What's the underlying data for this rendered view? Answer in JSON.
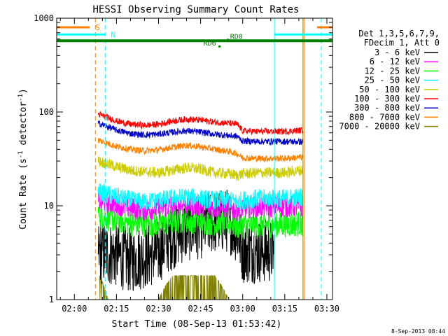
{
  "chart_data": {
    "type": "line",
    "title": "HESSI Observing Summary Count Rates",
    "xlabel": "Start Time (08-Sep-13 01:53:42)",
    "ylabel": "Count Rate (s⁻¹ detector⁻¹)",
    "ylabel_main": "Count Rate (s",
    "ylabel_sup1": "-1",
    "ylabel_mid": " detector",
    "ylabel_sup2": "-1",
    "ylabel_end": ")",
    "y_scale": "log",
    "xlim_minutes": [
      113.7,
      212
    ],
    "ylim": [
      1,
      1000
    ],
    "x_ticks": [
      {
        "t": 120,
        "label": "02:00"
      },
      {
        "t": 135,
        "label": "02:15"
      },
      {
        "t": 150,
        "label": "02:30"
      },
      {
        "t": 165,
        "label": "02:45"
      },
      {
        "t": 180,
        "label": "03:00"
      },
      {
        "t": 195,
        "label": "03:15"
      },
      {
        "t": 210,
        "label": "03:30"
      }
    ],
    "y_ticks": [
      {
        "v": 1,
        "label": "1"
      },
      {
        "v": 10,
        "label": "10"
      },
      {
        "v": 100,
        "label": "100"
      },
      {
        "v": 1000,
        "label": "1000"
      }
    ],
    "legend_header": [
      "Det 1,3,5,6,7,9,",
      "FDecim 1, Att 0"
    ],
    "legend_placement": "right",
    "data_window_minutes": [
      128.5,
      201.5
    ],
    "gap_window_minutes": [
      191.3,
      201.5
    ],
    "series": [
      {
        "name": "3 - 6 keV",
        "color": "#000000",
        "points": [
          [
            128.5,
            3.2
          ],
          [
            135,
            3.0
          ],
          [
            140,
            2.6
          ],
          [
            145,
            2.9
          ],
          [
            150,
            3.2
          ],
          [
            152,
            3.9
          ],
          [
            155,
            4.6
          ],
          [
            160,
            5.6
          ],
          [
            165,
            6.0
          ],
          [
            170,
            6.8
          ],
          [
            175,
            7.0
          ],
          [
            178,
            5.3
          ],
          [
            180,
            3.3
          ],
          [
            185,
            3.3
          ],
          [
            191.3,
            3.3
          ]
        ]
      },
      {
        "name": "6 - 12 keV",
        "color": "#ff00ff",
        "points": [
          [
            128.5,
            11.5
          ],
          [
            135,
            10.5
          ],
          [
            140,
            9.5
          ],
          [
            145,
            9.0
          ],
          [
            150,
            9.5
          ],
          [
            155,
            10.0
          ],
          [
            160,
            10.5
          ],
          [
            165,
            10.0
          ],
          [
            170,
            9.5
          ],
          [
            175,
            9.5
          ],
          [
            178,
            9.0
          ],
          [
            180,
            9.5
          ],
          [
            185,
            9.8
          ],
          [
            190,
            9.8
          ],
          [
            195,
            9.8
          ],
          [
            201.5,
            10.0
          ]
        ]
      },
      {
        "name": "12 - 25 keV",
        "color": "#00ff00",
        "points": [
          [
            128.5,
            8.0
          ],
          [
            135,
            7.0
          ],
          [
            140,
            6.5
          ],
          [
            145,
            6.3
          ],
          [
            150,
            6.5
          ],
          [
            155,
            6.8
          ],
          [
            160,
            7.0
          ],
          [
            165,
            6.8
          ],
          [
            170,
            6.5
          ],
          [
            175,
            6.5
          ],
          [
            178,
            6.0
          ],
          [
            180,
            6.2
          ],
          [
            185,
            6.3
          ],
          [
            190,
            6.3
          ],
          [
            195,
            6.3
          ],
          [
            201.5,
            6.5
          ]
        ]
      },
      {
        "name": "25 - 50 keV",
        "color": "#00ffff",
        "points": [
          [
            128.5,
            14.0
          ],
          [
            135,
            12.5
          ],
          [
            140,
            11.5
          ],
          [
            145,
            11.0
          ],
          [
            150,
            11.5
          ],
          [
            155,
            12.0
          ],
          [
            160,
            12.5
          ],
          [
            165,
            12.0
          ],
          [
            170,
            11.5
          ],
          [
            175,
            11.5
          ],
          [
            178,
            11.0
          ],
          [
            180,
            11.5
          ],
          [
            185,
            12.0
          ],
          [
            190,
            12.0
          ],
          [
            195,
            12.0
          ],
          [
            201.5,
            12.5
          ]
        ]
      },
      {
        "name": "50 - 100 keV",
        "color": "#cccc00",
        "points": [
          [
            128.5,
            30.0
          ],
          [
            135,
            26.0
          ],
          [
            140,
            24.0
          ],
          [
            145,
            23.0
          ],
          [
            150,
            22.5
          ],
          [
            155,
            24.0
          ],
          [
            160,
            25.5
          ],
          [
            165,
            24.5
          ],
          [
            170,
            22.5
          ],
          [
            175,
            22.0
          ],
          [
            178,
            21.0
          ],
          [
            180,
            22.0
          ],
          [
            185,
            22.5
          ],
          [
            190,
            22.5
          ],
          [
            195,
            22.5
          ],
          [
            201.5,
            24.0
          ]
        ]
      },
      {
        "name": "100 - 300 keV",
        "color": "#ff0000",
        "points": [
          [
            128.5,
            95.0
          ],
          [
            135,
            80.0
          ],
          [
            140,
            74.0
          ],
          [
            145,
            72.0
          ],
          [
            150,
            74.0
          ],
          [
            155,
            80.0
          ],
          [
            160,
            84.0
          ],
          [
            165,
            82.0
          ],
          [
            170,
            78.0
          ],
          [
            175,
            76.0
          ],
          [
            178,
            74.0
          ],
          [
            180,
            63.0
          ],
          [
            185,
            62.0
          ],
          [
            190,
            62.0
          ],
          [
            195,
            62.0
          ],
          [
            201.5,
            64.0
          ]
        ]
      },
      {
        "name": "300 - 800 keV",
        "color": "#0000cc",
        "points": [
          [
            128.5,
            76.0
          ],
          [
            135,
            64.0
          ],
          [
            140,
            59.0
          ],
          [
            145,
            57.0
          ],
          [
            150,
            58.0
          ],
          [
            155,
            61.0
          ],
          [
            160,
            63.0
          ],
          [
            165,
            61.0
          ],
          [
            170,
            58.0
          ],
          [
            175,
            56.0
          ],
          [
            178,
            55.0
          ],
          [
            180,
            49.0
          ],
          [
            185,
            48.5
          ],
          [
            190,
            48.5
          ],
          [
            195,
            48.5
          ],
          [
            201.5,
            48.0
          ]
        ]
      },
      {
        "name": "800 - 7000 keV",
        "color": "#ff8000",
        "points": [
          [
            128.5,
            50.0
          ],
          [
            135,
            43.0
          ],
          [
            140,
            40.0
          ],
          [
            145,
            38.5
          ],
          [
            150,
            39.5
          ],
          [
            155,
            42.0
          ],
          [
            160,
            44.0
          ],
          [
            165,
            42.5
          ],
          [
            170,
            40.0
          ],
          [
            175,
            38.0
          ],
          [
            178,
            36.0
          ],
          [
            180,
            32.5
          ],
          [
            185,
            32.0
          ],
          [
            190,
            32.0
          ],
          [
            195,
            32.0
          ],
          [
            201.5,
            33.0
          ]
        ]
      },
      {
        "name": "7000 - 20000 keV",
        "color": "#808000",
        "points": [
          [
            129,
            1.8
          ],
          [
            132,
            1.0
          ],
          [
            150,
            1.0
          ],
          [
            155,
            1.8
          ],
          [
            165,
            1.8
          ],
          [
            170,
            1.8
          ],
          [
            175,
            1.0
          ],
          [
            180,
            1.0
          ],
          [
            201.5,
            1.0
          ]
        ]
      }
    ],
    "attenuator_bars": [
      {
        "label": "S",
        "color": "#ff8000",
        "y": 800,
        "segments": [
          [
            113.7,
            125.5
          ],
          [
            206.5,
            212
          ]
        ]
      },
      {
        "label": "N",
        "color": "#00ffff",
        "y": 670,
        "segments": [
          [
            113.7,
            131.0
          ],
          [
            191.3,
            212
          ]
        ]
      }
    ],
    "rd_bar": {
      "color": "#008000",
      "y": 575,
      "segments": [
        [
          113.7,
          212
        ]
      ]
    },
    "rd_labels": [
      {
        "text": "RD0",
        "t": 175.5,
        "y": 600,
        "marker_y": 588
      },
      {
        "text": "RD6",
        "t": 170.5,
        "y": 510,
        "marker_y": 500
      }
    ],
    "vlines": [
      {
        "t": 127.5,
        "color": "#ff8000",
        "style": "dashed"
      },
      {
        "t": 131.0,
        "color": "#00ffff",
        "style": "dashed"
      },
      {
        "t": 191.3,
        "color": "#00ffff",
        "style": "solid"
      },
      {
        "t": 201.5,
        "color": "#808000",
        "style": "solid"
      },
      {
        "t": 202.0,
        "color": "#ff8000",
        "style": "solid"
      },
      {
        "t": 208.0,
        "color": "#00ffff",
        "style": "dashed"
      }
    ],
    "timestamp": "8-Sep-2013 08:44"
  }
}
